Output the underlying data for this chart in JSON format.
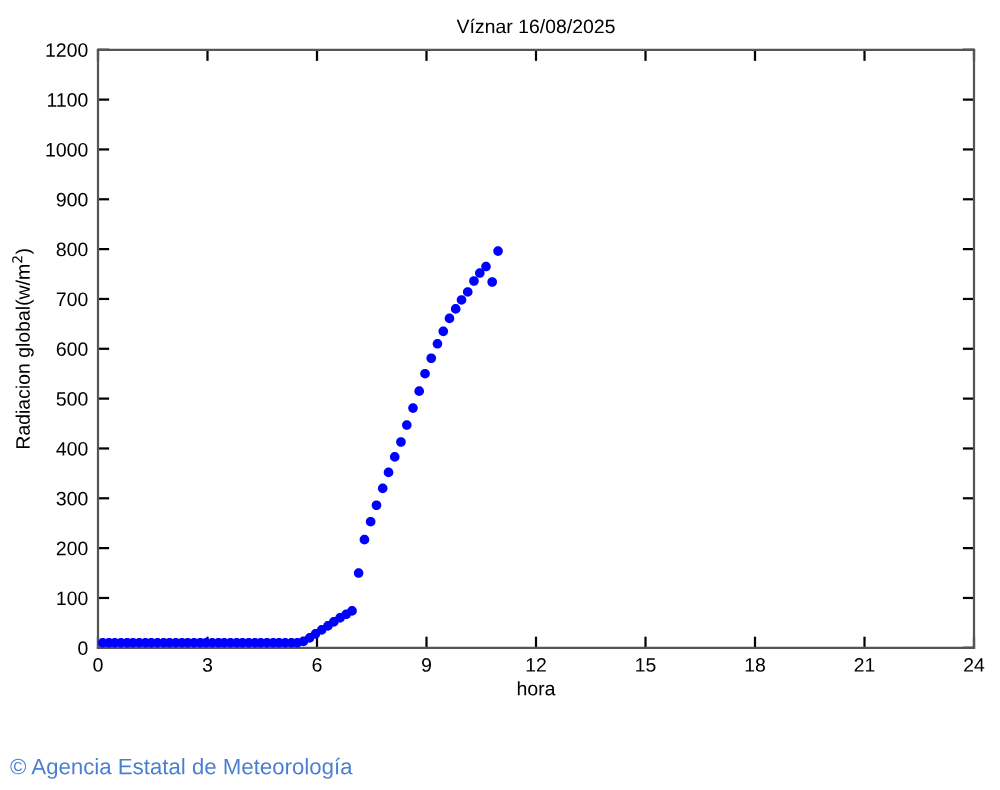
{
  "chart_data": {
    "type": "scatter",
    "title": "Víznar 16/08/2025",
    "xlabel": "hora",
    "ylabel": "Radiacion global(w/m$^{2}$)",
    "annotations": [
      "© Agencia Estatal de Meteorología"
    ],
    "marker": "circle",
    "grid": false,
    "legend": false,
    "xlim": [
      0,
      24
    ],
    "xticks": [
      0,
      3,
      6,
      9,
      12,
      15,
      18,
      21,
      24
    ],
    "ylim": [
      0,
      1200
    ],
    "yticks": [
      0,
      100,
      200,
      300,
      400,
      500,
      600,
      700,
      800,
      900,
      1000,
      1100,
      1200
    ],
    "series": [
      {
        "color": "#0000ff",
        "x": [
          0.13,
          0.3,
          0.46,
          0.63,
          0.8,
          0.96,
          1.13,
          1.3,
          1.46,
          1.63,
          1.8,
          1.96,
          2.13,
          2.3,
          2.46,
          2.63,
          2.8,
          2.96,
          3.13,
          3.3,
          3.46,
          3.63,
          3.8,
          3.96,
          4.13,
          4.3,
          4.46,
          4.63,
          4.8,
          4.96,
          5.13,
          5.3,
          5.46,
          5.63,
          5.8,
          5.96,
          6.13,
          6.3,
          6.46,
          6.63,
          6.8,
          6.96,
          7.14,
          7.3,
          7.47,
          7.63,
          7.8,
          7.96,
          8.13,
          8.3,
          8.46,
          8.63,
          8.8,
          8.96,
          9.13,
          9.3,
          9.46,
          9.63,
          9.8,
          9.96,
          10.13,
          10.3,
          10.46,
          10.63,
          10.8,
          10.96
        ],
        "values": [
          10,
          10,
          10,
          10,
          10,
          10,
          10,
          10,
          10,
          10,
          10,
          10,
          10,
          10,
          10,
          10,
          10,
          10,
          10,
          10,
          10,
          10,
          10,
          10,
          10,
          10,
          10,
          10,
          10,
          10,
          10,
          10,
          10,
          13,
          20,
          28,
          36,
          44,
          52,
          60,
          67,
          74,
          150,
          217,
          253,
          286,
          320,
          352,
          383,
          413,
          447,
          481,
          515,
          550,
          581,
          610,
          635,
          661,
          680,
          698,
          714,
          736,
          752,
          765,
          734,
          796
        ]
      }
    ]
  }
}
